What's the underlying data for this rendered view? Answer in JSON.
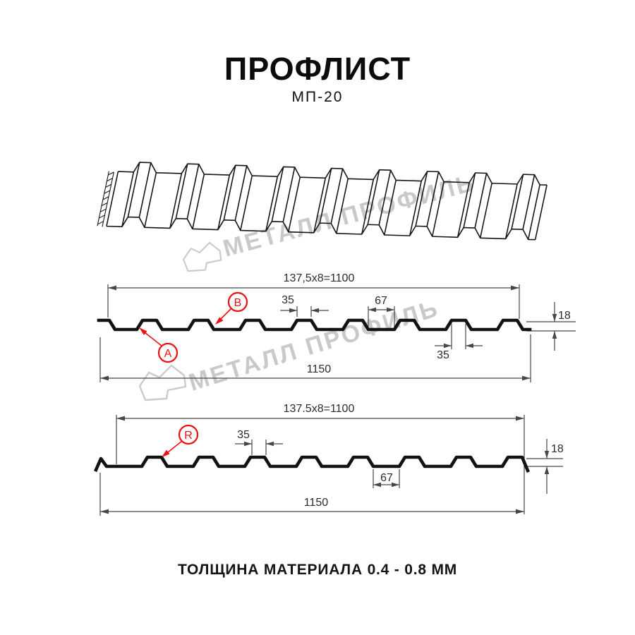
{
  "header": {
    "title": "ПРОФЛИСТ",
    "subtitle": "МП-20"
  },
  "footer": {
    "note": "ТОЛЩИНА МАТЕРИАЛА 0.4 - 0.8 ММ"
  },
  "watermark": {
    "text": "МЕТАЛЛ ПРОФИЛЬ",
    "logo": "metall-profil-logo",
    "color": "#c9c9c9"
  },
  "colors": {
    "marker_red": "#ee1111",
    "profile_line": "#121212",
    "dim_line": "#474747"
  },
  "section_top": {
    "pitch_formula": "137,5x8=1100",
    "rib_width_top": "35",
    "valley_width": "67",
    "profile_height": "18",
    "rib_width_bottom": "35",
    "overall_width": "1150",
    "marker_a": "A",
    "marker_b": "B"
  },
  "section_bottom": {
    "pitch_formula": "137.5x8=1100",
    "rib_width_top": "35",
    "valley_width": "67",
    "profile_height": "18",
    "overall_width": "1150",
    "marker_r": "R"
  }
}
